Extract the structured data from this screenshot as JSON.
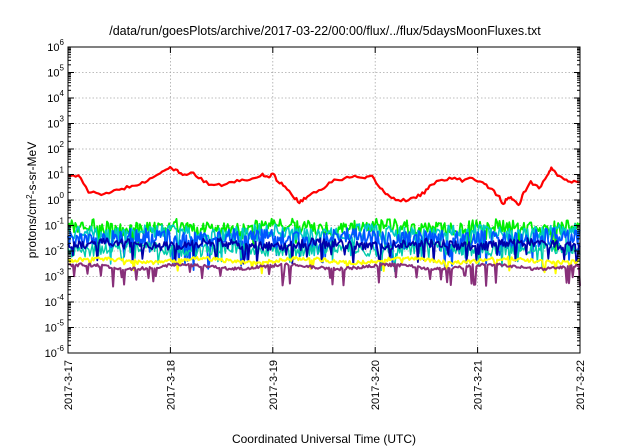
{
  "chart_data": {
    "type": "line",
    "title": "/data/run/goesPlots/archive/2017-03-22/00:00/flux/../flux/5daysMoonFluxes.txt",
    "xlabel": "Coordinated Universal Time (UTC)",
    "ylabel": "protons/cm²-s-sr-MeV",
    "ylabel_parts": {
      "pre": "protons/cm",
      "sup": "2",
      "post": "-s-sr-MeV"
    },
    "yscale": "log",
    "ylim": [
      1e-06,
      1000000.0
    ],
    "xlim": [
      0,
      5
    ],
    "x_start": "2017-3-17",
    "x_unit": "days",
    "grid": true,
    "y_ticks": [
      {
        "exp": "-6",
        "value": 1e-06
      },
      {
        "exp": "-5",
        "value": 1e-05
      },
      {
        "exp": "-4",
        "value": 0.0001
      },
      {
        "exp": "-3",
        "value": 0.001
      },
      {
        "exp": "-2",
        "value": 0.01
      },
      {
        "exp": "-1",
        "value": 0.1
      },
      {
        "exp": "0",
        "value": 1
      },
      {
        "exp": "1",
        "value": 10
      },
      {
        "exp": "2",
        "value": 100
      },
      {
        "exp": "3",
        "value": 1000
      },
      {
        "exp": "4",
        "value": 10000
      },
      {
        "exp": "5",
        "value": 100000
      },
      {
        "exp": "6",
        "value": 1000000
      }
    ],
    "y_tick_base": "10",
    "x_ticks": [
      {
        "label": "2017-3-17",
        "x": 0
      },
      {
        "label": "2017-3-18",
        "x": 1
      },
      {
        "label": "2017-3-19",
        "x": 2
      },
      {
        "label": "2017-3-20",
        "x": 3
      },
      {
        "label": "2017-3-21",
        "x": 4
      },
      {
        "label": "2017-3-22",
        "x": 5
      }
    ],
    "series": [
      {
        "color": "#ff0000",
        "width": 2.2,
        "jitter": 0.12,
        "points": [
          [
            0.0,
            10
          ],
          [
            0.1,
            9
          ],
          [
            0.2,
            2.2
          ],
          [
            0.3,
            1.6
          ],
          [
            0.4,
            2
          ],
          [
            0.5,
            2.4
          ],
          [
            0.6,
            3.5
          ],
          [
            0.7,
            4.5
          ],
          [
            0.8,
            6.5
          ],
          [
            0.9,
            12
          ],
          [
            0.98,
            18
          ],
          [
            1.05,
            15
          ],
          [
            1.12,
            9
          ],
          [
            1.2,
            13
          ],
          [
            1.3,
            6.5
          ],
          [
            1.4,
            3.5
          ],
          [
            1.5,
            4
          ],
          [
            1.6,
            4.8
          ],
          [
            1.7,
            6
          ],
          [
            1.8,
            6.5
          ],
          [
            1.9,
            10
          ],
          [
            1.95,
            8
          ],
          [
            2.0,
            11
          ],
          [
            2.05,
            5
          ],
          [
            2.12,
            3.8
          ],
          [
            2.2,
            1.3
          ],
          [
            2.26,
            0.85
          ],
          [
            2.32,
            1.2
          ],
          [
            2.4,
            2
          ],
          [
            2.5,
            3
          ],
          [
            2.6,
            6
          ],
          [
            2.7,
            7
          ],
          [
            2.8,
            8
          ],
          [
            2.9,
            7
          ],
          [
            2.97,
            8
          ],
          [
            3.05,
            3
          ],
          [
            3.12,
            1.6
          ],
          [
            3.2,
            1
          ],
          [
            3.3,
            1
          ],
          [
            3.4,
            1.3
          ],
          [
            3.48,
            2
          ],
          [
            3.55,
            4
          ],
          [
            3.65,
            6
          ],
          [
            3.75,
            7
          ],
          [
            3.85,
            6
          ],
          [
            3.95,
            7
          ],
          [
            4.05,
            5
          ],
          [
            4.12,
            3
          ],
          [
            4.2,
            1.5
          ],
          [
            4.25,
            0.7
          ],
          [
            4.3,
            1.3
          ],
          [
            4.35,
            1
          ],
          [
            4.4,
            0.6
          ],
          [
            4.45,
            1.8
          ],
          [
            4.52,
            5
          ],
          [
            4.6,
            3
          ],
          [
            4.68,
            8
          ],
          [
            4.72,
            20
          ],
          [
            4.78,
            10
          ],
          [
            4.85,
            6
          ],
          [
            4.92,
            5
          ],
          [
            5.0,
            5
          ]
        ]
      },
      {
        "color": "#00ee00",
        "width": 1.8,
        "base": 0.085,
        "amp": 0.55,
        "dips": 0.28
      },
      {
        "color": "#00c8c8",
        "width": 1.6,
        "base": 0.05,
        "amp": 0.6,
        "dips": 0.34
      },
      {
        "color": "#0055ff",
        "width": 1.8,
        "base": 0.03,
        "amp": 0.7,
        "dips": 0.4
      },
      {
        "color": "#00ccaa",
        "width": 1.4,
        "base": 0.012,
        "amp": 0.5,
        "dips": 0.3
      },
      {
        "color": "#0000aa",
        "width": 1.8,
        "base": 0.018,
        "amp": 0.35,
        "dips": 0.3
      },
      {
        "color": "#ffff00",
        "width": 2.0,
        "base": 0.0042,
        "amp": 0.15,
        "dips": 0.18
      },
      {
        "color": "#88307a",
        "width": 2.0,
        "base": 0.0024,
        "amp": 0.12,
        "dips": 0.3
      }
    ]
  }
}
